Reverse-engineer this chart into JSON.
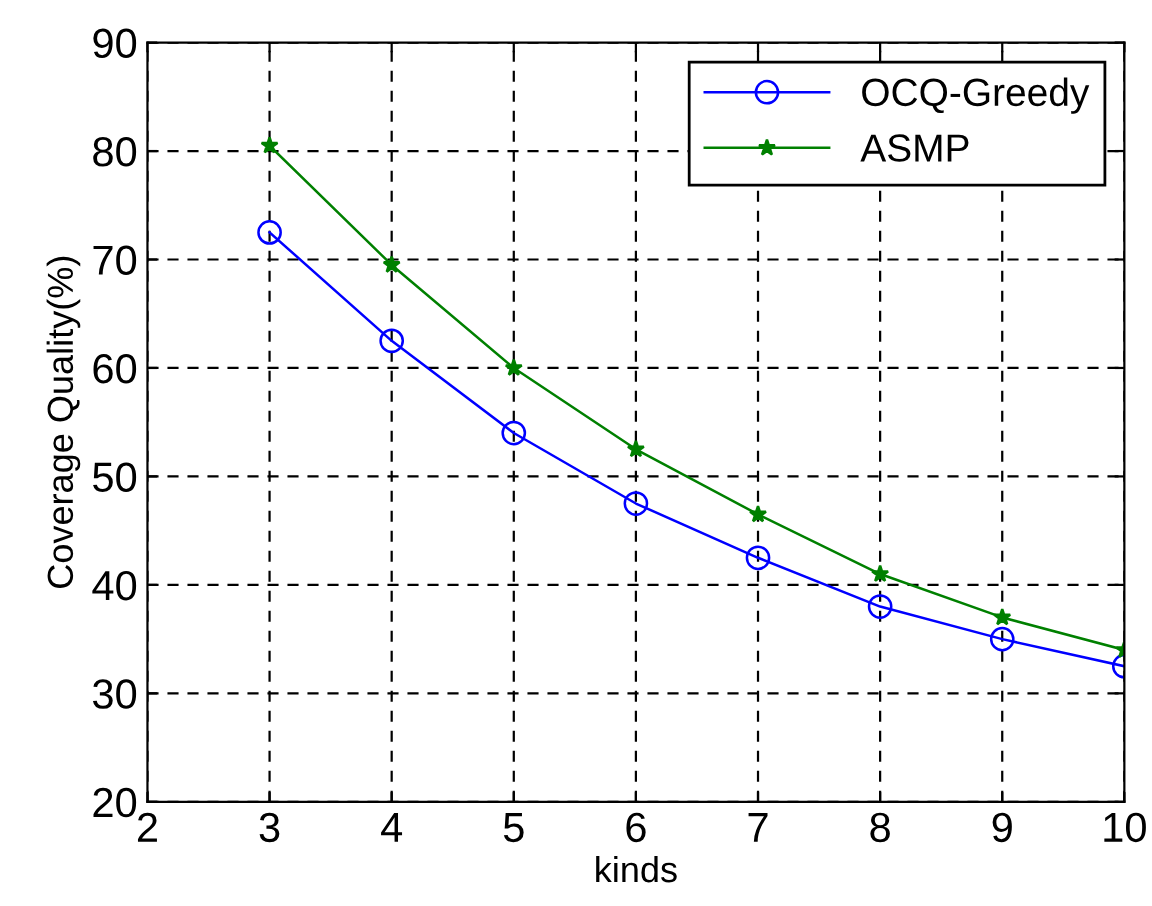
{
  "chart_data": {
    "type": "line",
    "xlabel": "kinds",
    "ylabel": "Coverage Quality(%)",
    "x": [
      3,
      4,
      5,
      6,
      7,
      8,
      9,
      10
    ],
    "series": [
      {
        "name": "OCQ-Greedy",
        "color": "#0000ff",
        "marker": "circle",
        "values": [
          72.5,
          62.5,
          54,
          47.5,
          42.5,
          38,
          35,
          32.5
        ]
      },
      {
        "name": "ASMP",
        "color": "#008000",
        "marker": "star",
        "values": [
          80.5,
          69.5,
          60,
          52.5,
          46.5,
          41,
          37,
          34
        ]
      }
    ],
    "xlim": [
      2,
      10
    ],
    "xticks": [
      2,
      3,
      4,
      5,
      6,
      7,
      8,
      9,
      10
    ],
    "ylim": [
      20,
      90
    ],
    "yticks": [
      20,
      30,
      40,
      50,
      60,
      70,
      80,
      90
    ],
    "grid": true,
    "legend": "top right",
    "line_style": "solid"
  }
}
